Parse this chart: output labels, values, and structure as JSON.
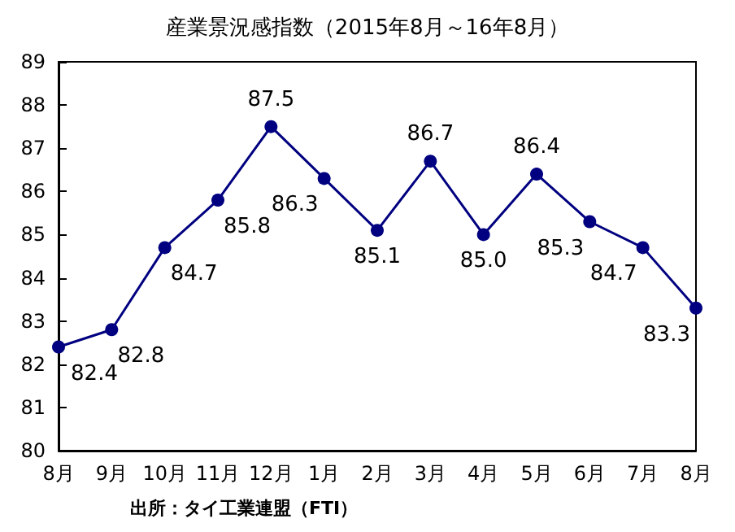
{
  "chart_data": {
    "type": "line",
    "title": "産業景況感指数（2015年8月～16年8月）",
    "categories": [
      "8月",
      "9月",
      "10月",
      "11月",
      "12月",
      "1月",
      "2月",
      "3月",
      "4月",
      "5月",
      "6月",
      "7月",
      "8月"
    ],
    "series": [
      {
        "color": "#000080",
        "values": [
          82.4,
          82.8,
          84.7,
          85.8,
          87.5,
          86.3,
          85.1,
          86.7,
          85.0,
          86.4,
          85.3,
          84.7,
          83.3
        ],
        "value_labels": [
          "82.4",
          "82.8",
          "84.7",
          "85.8",
          "87.5",
          "86.3",
          "85.1",
          "86.7",
          "85.0",
          "86.4",
          "85.3",
          "84.7",
          "83.3"
        ]
      }
    ],
    "ylim": [
      80,
      89
    ],
    "yticks": [
      80,
      81,
      82,
      83,
      84,
      85,
      86,
      87,
      88,
      89
    ],
    "grid": false,
    "marker": "circle",
    "line_style": "solid",
    "annotations": [
      "出所：タイ工業連盟（FTI）"
    ]
  }
}
